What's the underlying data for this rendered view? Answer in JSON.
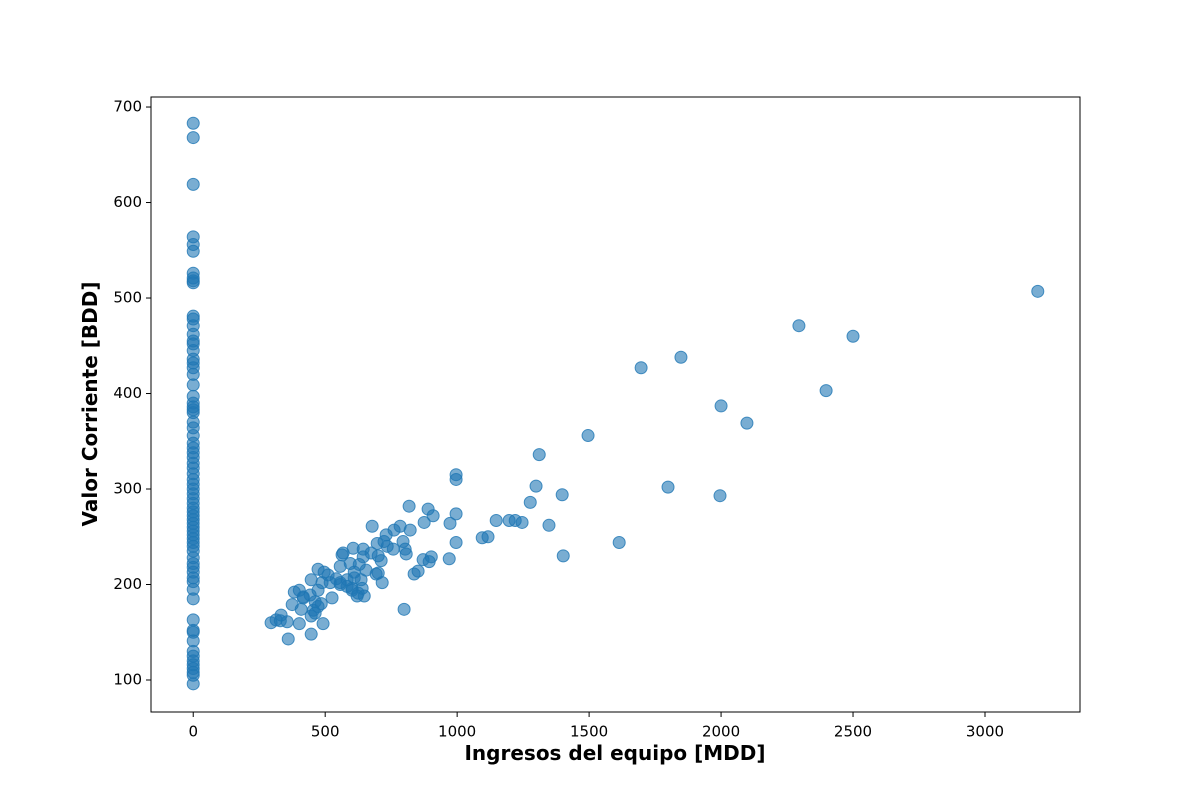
{
  "chart_data": {
    "type": "scatter",
    "xlabel": "Ingresos del equipo [MDD]",
    "ylabel": "Valor Corriente [BDD]",
    "color": "#1f77b4",
    "alpha": 0.6,
    "grid": false,
    "xlim": [
      -160,
      3360
    ],
    "ylim": [
      66.5,
      710.5
    ],
    "xticks": [
      0,
      500,
      1000,
      1500,
      2000,
      2500,
      3000
    ],
    "yticks": [
      100,
      200,
      300,
      400,
      500,
      600,
      700
    ],
    "x": [
      0,
      0,
      0,
      0,
      0,
      0,
      0,
      0,
      0,
      0,
      0,
      0,
      0,
      0,
      0,
      0,
      0,
      0,
      0,
      0,
      0,
      0,
      0,
      0,
      0,
      0,
      0,
      0,
      0,
      0,
      0,
      0,
      0,
      0,
      0,
      0,
      0,
      0,
      0,
      0,
      0,
      0,
      0,
      0,
      0,
      0,
      0,
      0,
      0,
      0,
      0,
      0,
      0,
      0,
      0,
      0,
      0,
      0,
      0,
      0,
      0,
      0,
      0,
      0,
      0,
      0,
      0,
      0,
      0,
      0,
      0,
      0,
      0,
      0,
      0,
      3200,
      2295,
      2500,
      1848,
      1697,
      2398,
      2000,
      2098,
      1496,
      1311,
      996,
      996,
      1799,
      1299,
      1996,
      1398,
      1277,
      818,
      890,
      909,
      996,
      678,
      784,
      761,
      822,
      1148,
      1197,
      1220,
      1246,
      1348,
      875,
      973,
      1117,
      1095,
      731,
      723,
      697,
      795,
      803,
      996,
      1614,
      1402,
      758,
      807,
      902,
      894,
      871,
      970,
      735,
      644,
      606,
      564,
      568,
      674,
      701,
      644,
      595,
      557,
      629,
      712,
      655,
      610,
      701,
      693,
      636,
      716,
      837,
      852,
      473,
      496,
      511,
      542,
      557,
      583,
      602,
      625,
      640,
      610,
      583,
      557,
      519,
      447,
      488,
      473,
      526,
      648,
      621,
      602,
      402,
      383,
      417,
      443,
      462,
      485,
      455,
      473,
      375,
      409,
      417,
      402,
      447,
      462,
      492,
      799,
      295,
      314,
      333,
      330,
      356,
      360,
      447
    ],
    "values": [
      683,
      668,
      619,
      564,
      556,
      549,
      526,
      521,
      518,
      516,
      481,
      478,
      471,
      462,
      455,
      452,
      445,
      436,
      432,
      427,
      420,
      409,
      397,
      390,
      386,
      383,
      380,
      370,
      364,
      356,
      348,
      343,
      338,
      333,
      327,
      322,
      316,
      310,
      305,
      300,
      295,
      290,
      285,
      280,
      276,
      272,
      268,
      264,
      260,
      256,
      252,
      248,
      244,
      240,
      235,
      228,
      222,
      218,
      213,
      207,
      203,
      195,
      185,
      163,
      152,
      150,
      141,
      130,
      125,
      120,
      116,
      112,
      108,
      105,
      96,
      507,
      471,
      460,
      438,
      427,
      403,
      387,
      369,
      356,
      336,
      315,
      310,
      302,
      303,
      293,
      294,
      286,
      282,
      279,
      272,
      274,
      261,
      261,
      257,
      257,
      267,
      267,
      267,
      265,
      262,
      265,
      264,
      250,
      249,
      252,
      245,
      243,
      245,
      237,
      244,
      244,
      230,
      237,
      232,
      229,
      224,
      226,
      227,
      240,
      237,
      238,
      231,
      233,
      233,
      230,
      229,
      222,
      219,
      221,
      225,
      215,
      213,
      212,
      211,
      205,
      202,
      211,
      214,
      216,
      213,
      210,
      206,
      200,
      198,
      194,
      191,
      196,
      207,
      205,
      202,
      202,
      205,
      202,
      194,
      186,
      188,
      188,
      196,
      194,
      192,
      187,
      189,
      182,
      180,
      173,
      177,
      179,
      174,
      186,
      159,
      167,
      170,
      159,
      174,
      160,
      163,
      168,
      162,
      161,
      143,
      148
    ]
  }
}
